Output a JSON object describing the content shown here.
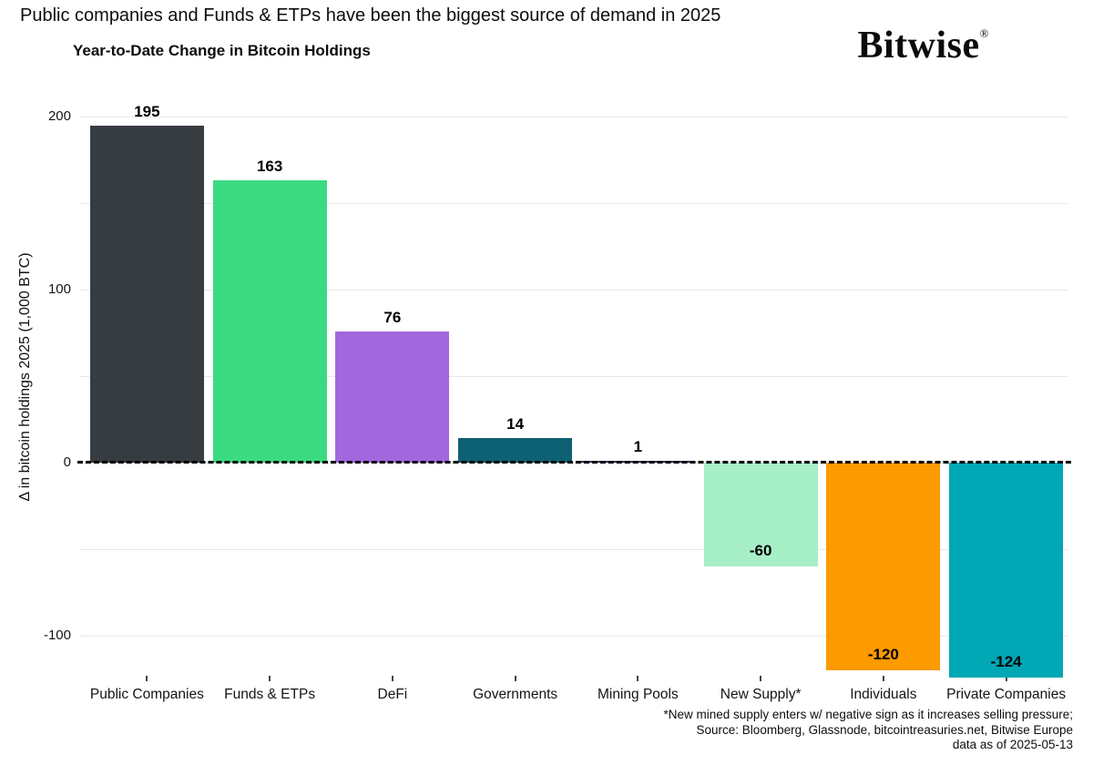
{
  "header": {
    "title": "Public companies and Funds & ETPs have been the biggest source of demand in 2025",
    "subtitle": "Year-to-Date Change in Bitcoin Holdings",
    "logo_text": "Bitwise",
    "logo_registered_mark": "®"
  },
  "chart_data": {
    "type": "bar",
    "title": "Year-to-Date Change in Bitcoin Holdings",
    "xlabel": "",
    "ylabel": "Δ in bitcoin holdings 2025 (1,000 BTC)",
    "categories": [
      "Public Companies",
      "Funds & ETPs",
      "DeFi",
      "Governments",
      "Mining Pools",
      "New Supply*",
      "Individuals",
      "Private Companies"
    ],
    "values": [
      195,
      163,
      76,
      14,
      1,
      -60,
      -120,
      -124
    ],
    "value_labels": [
      "195",
      "163",
      "76",
      "14",
      "1",
      "-60",
      "-120",
      "-124"
    ],
    "bar_colors": [
      "#373c41",
      "#3bda82",
      "#a266dd",
      "#0e6073",
      "#3b2c70",
      "#a6efc7",
      "#fc9a00",
      "#00a7b5"
    ],
    "ylim": [
      -135,
      205
    ],
    "ytick_labels": [
      "200",
      "100",
      "0",
      "-100"
    ],
    "ytick_values": [
      200,
      100,
      0,
      -100
    ],
    "gridline_values": [
      200,
      150,
      100,
      50,
      0,
      -50,
      -100
    ],
    "gridline_color": "#e8e8e8",
    "zero_line_style": "black dashed",
    "legend_position": "none",
    "grid": "horizontal"
  },
  "footer": {
    "line1": "*New mined supply enters w/ negative sign as it increases selling pressure;",
    "line2": "Source: Bloomberg, Glassnode, bitcointreasuries.net, Bitwise Europe",
    "line3": "data as of 2025-05-13"
  }
}
